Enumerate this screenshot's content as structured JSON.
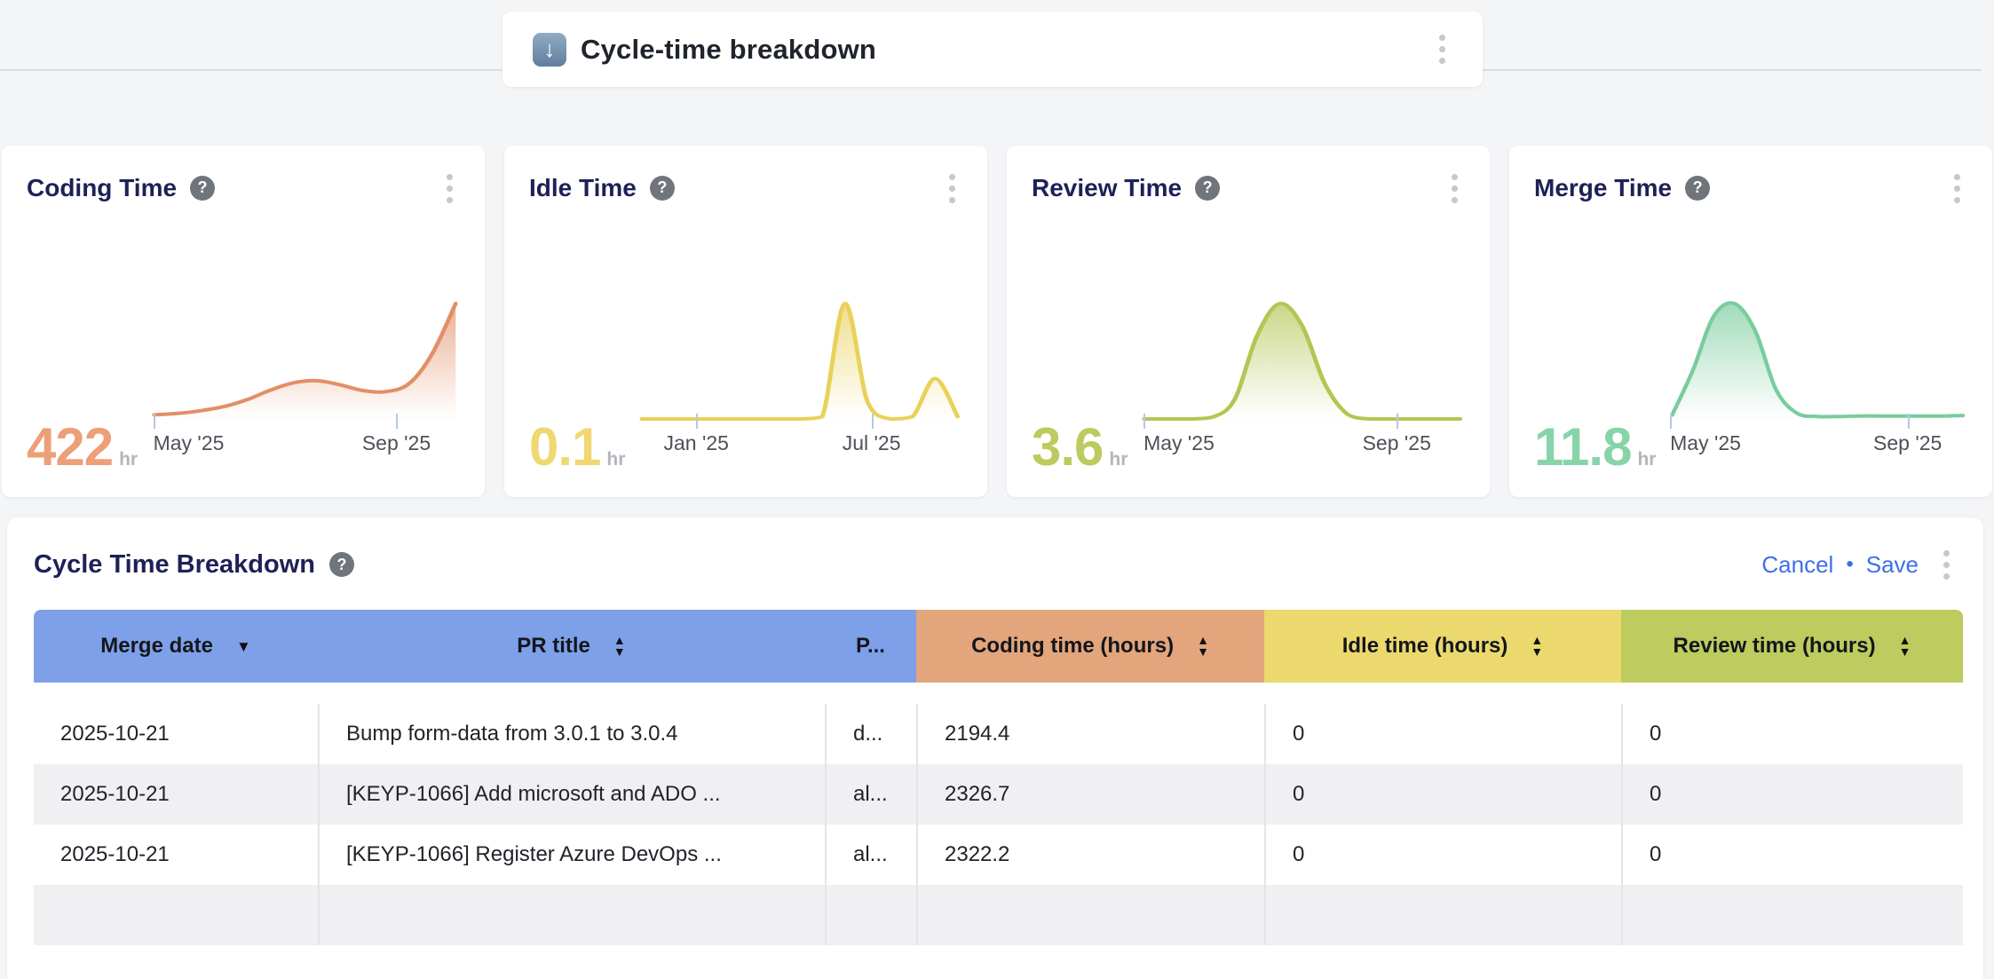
{
  "header_card": {
    "icon": "↓",
    "title": "Cycle-time breakdown"
  },
  "metric_cards": [
    {
      "title": "Coding Time",
      "value": "422",
      "unit": "hr",
      "accent": "#ed9f78",
      "line": "#e28f66",
      "chart_data": {
        "type": "area",
        "values": [
          15,
          20,
          30,
          45,
          70,
          105,
          132,
          140,
          125,
          104,
          100,
          130,
          240,
          422
        ],
        "ticks": [
          {
            "label": "May '25",
            "pos": 0.01
          },
          {
            "label": "Sep '25",
            "pos": 0.795
          }
        ]
      }
    },
    {
      "title": "Idle Time",
      "value": "0.1",
      "unit": "hr",
      "accent": "#f0d870",
      "line": "#e9d15a",
      "chart_data": {
        "type": "area",
        "values": [
          0,
          0,
          0,
          0,
          0,
          0,
          0,
          0,
          0.002,
          0.1,
          0.015,
          0,
          0.002,
          0.035,
          0.002
        ],
        "ticks": [
          {
            "label": "Jan '25",
            "pos": 0.18
          },
          {
            "label": "Jul '25",
            "pos": 0.72
          }
        ]
      }
    },
    {
      "title": "Review Time",
      "value": "3.6",
      "unit": "hr",
      "accent": "#bcca5f",
      "line": "#b3c653",
      "chart_data": {
        "type": "area",
        "values": [
          0,
          0,
          0,
          0.05,
          0.6,
          2.6,
          3.6,
          2.9,
          1.1,
          0.15,
          0,
          0,
          0,
          0,
          0
        ],
        "ticks": [
          {
            "label": "May '25",
            "pos": 0.01
          },
          {
            "label": "Sep '25",
            "pos": 0.79
          }
        ]
      }
    },
    {
      "title": "Merge Time",
      "value": "11.8",
      "unit": "hr",
      "accent": "#87d4a8",
      "line": "#79cc9d",
      "chart_data": {
        "type": "area",
        "values": [
          0.4,
          5,
          10.5,
          11.8,
          9,
          3,
          0.6,
          0.25,
          0.25,
          0.3,
          0.3,
          0.3,
          0.3,
          0.3,
          0.35
        ],
        "ticks": [
          {
            "label": "May '25",
            "pos": 0.005
          },
          {
            "label": "Sep '25",
            "pos": 0.8
          }
        ]
      }
    }
  ],
  "table_card": {
    "title": "Cycle Time Breakdown",
    "cancel_label": "Cancel",
    "separator": "•",
    "save_label": "Save",
    "columns": [
      {
        "label": "Merge date",
        "color": "#7da0e9",
        "sort": "desc"
      },
      {
        "label": "PR title",
        "color": "#7da0e9",
        "sort": "both"
      },
      {
        "label": "P...",
        "color": "#7da0e9",
        "sort": "none"
      },
      {
        "label": "Coding time (hours)",
        "color": "#e2a57c",
        "sort": "both"
      },
      {
        "label": "Idle time (hours)",
        "color": "#ecd96e",
        "sort": "both"
      },
      {
        "label": "Review time (hours)",
        "color": "#bdcb5f",
        "sort": "both"
      }
    ],
    "rows": [
      [
        "2025-10-21",
        "Bump form-data from 3.0.1 to 3.0.4",
        "d...",
        "2194.4",
        "0",
        "0"
      ],
      [
        "2025-10-21",
        "[KEYP-1066] Add microsoft and ADO ...",
        "al...",
        "2326.7",
        "0",
        "0"
      ],
      [
        "2025-10-21",
        "[KEYP-1066] Register Azure DevOps ...",
        "al...",
        "2322.2",
        "0",
        "0"
      ]
    ]
  }
}
